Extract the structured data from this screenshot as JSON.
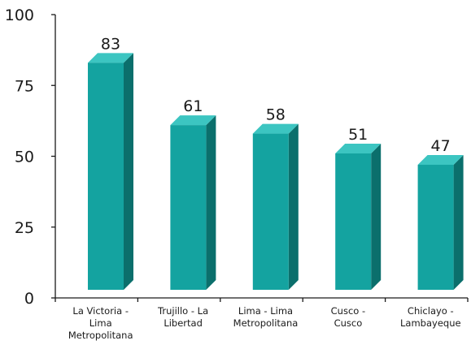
{
  "chart_data": {
    "type": "bar",
    "categories": [
      [
        "La Victoria -",
        "Lima",
        "Metropolitana"
      ],
      [
        "Trujillo - La",
        "Libertad"
      ],
      [
        "Lima - Lima",
        "Metropolitana"
      ],
      [
        "Cusco -",
        "Cusco"
      ],
      [
        "Chiclayo -",
        "Lambayeque"
      ]
    ],
    "values": [
      83,
      61,
      58,
      51,
      47
    ],
    "data_labels": [
      "83",
      "61",
      "58",
      "51",
      "47"
    ],
    "yticks": [
      "0",
      "25",
      "50",
      "75",
      "100"
    ],
    "ylim": [
      0,
      100
    ],
    "grid": false,
    "legend": "none",
    "colors": {
      "bar_front": "#14a3a0",
      "bar_side": "#0b6f6c",
      "bar_top": "#3cc5c1",
      "axis": "#1a1a1a"
    }
  }
}
